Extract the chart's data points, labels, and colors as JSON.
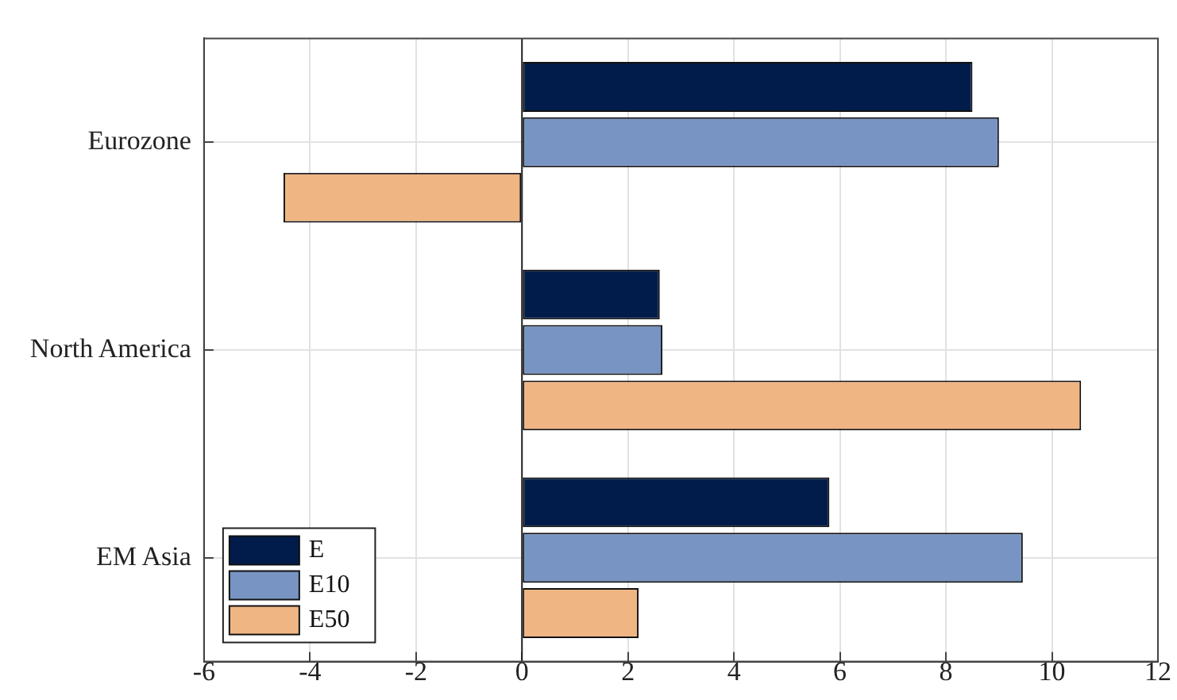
{
  "chart_data": {
    "type": "bar",
    "orientation": "horizontal",
    "categories": [
      "Eurozone",
      "North America",
      "EM Asia"
    ],
    "series": [
      {
        "name": "E",
        "color": "#011c4b",
        "values": [
          8.5,
          2.6,
          5.8
        ]
      },
      {
        "name": "E10",
        "color": "#7794c3",
        "values": [
          9,
          2.65,
          9.45
        ]
      },
      {
        "name": "E50",
        "color": "#efb583",
        "values": [
          -4.5,
          10.55,
          2.2
        ]
      }
    ],
    "xlim": [
      -6,
      12
    ],
    "xticks": [
      -6,
      -4,
      -2,
      0,
      2,
      4,
      6,
      8,
      10,
      12
    ],
    "grid": true,
    "legend": "bottom left"
  }
}
